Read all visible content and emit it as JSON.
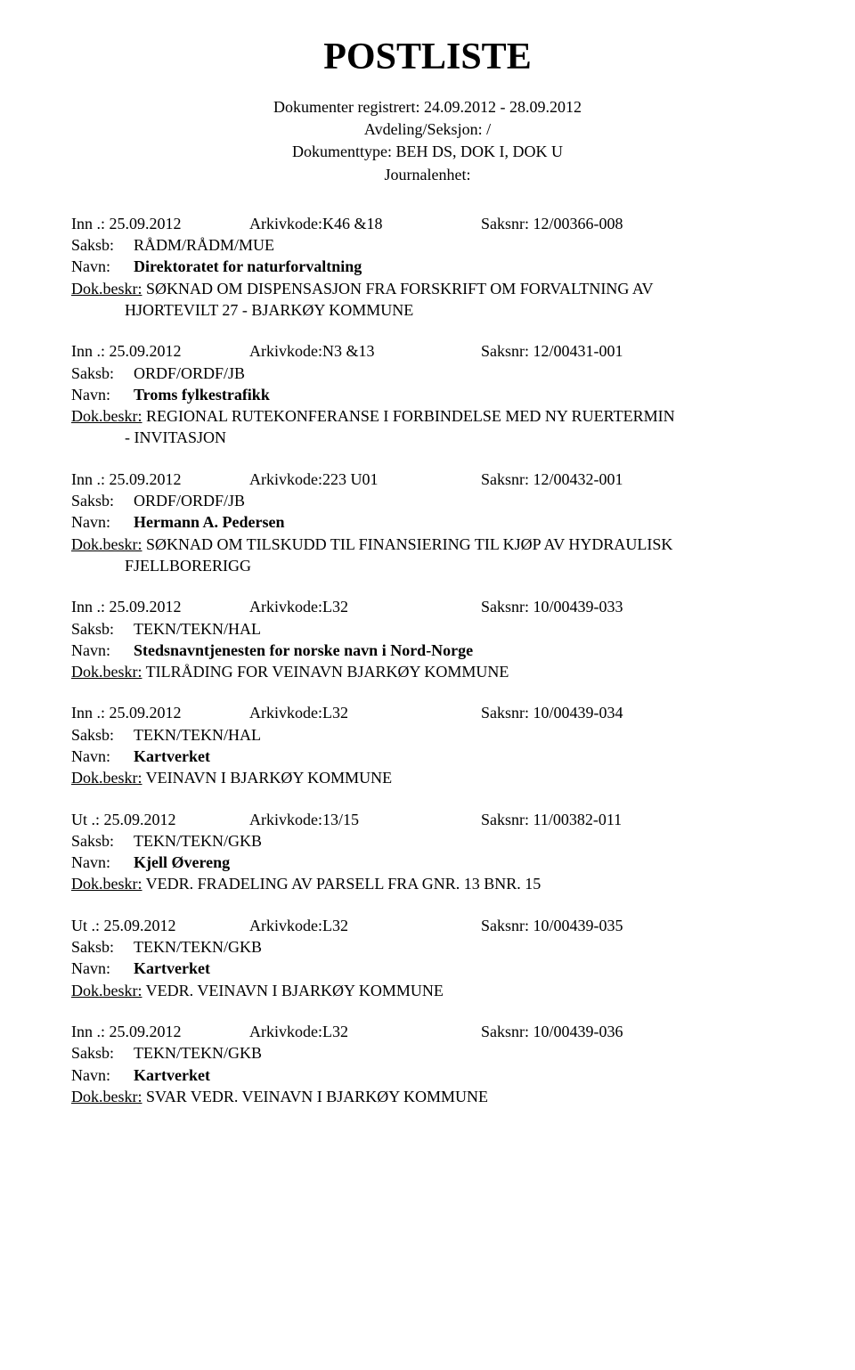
{
  "title": "POSTLISTE",
  "header": {
    "line1": "Dokumenter registrert: 24.09.2012 - 28.09.2012",
    "line2": "Avdeling/Seksjon: /",
    "line3": "Dokumenttype: BEH DS, DOK I, DOK U",
    "line4": "Journalenhet:"
  },
  "labels": {
    "saksb": "Saksb:",
    "navn": "Navn:",
    "dokbeskr": "Dok.beskr:"
  },
  "entries": [
    {
      "prefix": "Inn .: 25.09.2012",
      "arkivkode": "Arkivkode:K46 &18",
      "saksnr": "Saksnr: 12/00366-008",
      "saksb": "RÅDM/RÅDM/MUE",
      "navn": "Direktoratet for naturforvaltning",
      "dokbeskr1": " SØKNAD OM DISPENSASJON FRA FORSKRIFT OM FORVALTNING AV",
      "dokbeskr2": "HJORTEVILT 27 - BJARKØY KOMMUNE"
    },
    {
      "prefix": "Inn .: 25.09.2012",
      "arkivkode": "Arkivkode:N3 &13",
      "saksnr": "Saksnr: 12/00431-001",
      "saksb": "ORDF/ORDF/JB",
      "navn": "Troms fylkestrafikk",
      "dokbeskr1": " REGIONAL RUTEKONFERANSE I FORBINDELSE MED NY RUERTERMIN",
      "dokbeskr2": "- INVITASJON"
    },
    {
      "prefix": "Inn .: 25.09.2012",
      "arkivkode": "Arkivkode:223 U01",
      "saksnr": "Saksnr: 12/00432-001",
      "saksb": "ORDF/ORDF/JB",
      "navn": "Hermann A. Pedersen",
      "dokbeskr1": " SØKNAD OM TILSKUDD TIL FINANSIERING TIL KJØP AV HYDRAULISK",
      "dokbeskr2": "FJELLBORERIGG"
    },
    {
      "prefix": "Inn .: 25.09.2012",
      "arkivkode": "Arkivkode:L32",
      "saksnr": "Saksnr: 10/00439-033",
      "saksb": "TEKN/TEKN/HAL",
      "navn": "Stedsnavntjenesten for norske navn i Nord-Norge",
      "dokbeskr1": " TILRÅDING FOR VEINAVN BJARKØY KOMMUNE",
      "dokbeskr2": ""
    },
    {
      "prefix": "Inn .: 25.09.2012",
      "arkivkode": "Arkivkode:L32",
      "saksnr": "Saksnr: 10/00439-034",
      "saksb": "TEKN/TEKN/HAL",
      "navn": "Kartverket",
      "dokbeskr1": " VEINAVN I BJARKØY KOMMUNE",
      "dokbeskr2": ""
    },
    {
      "prefix": "Ut .: 25.09.2012",
      "arkivkode": "Arkivkode:13/15",
      "saksnr": "Saksnr: 11/00382-011",
      "saksb": "TEKN/TEKN/GKB",
      "navn": "Kjell Øvereng",
      "dokbeskr1": " VEDR. FRADELING AV PARSELL FRA GNR. 13 BNR. 15",
      "dokbeskr2": ""
    },
    {
      "prefix": "Ut .: 25.09.2012",
      "arkivkode": "Arkivkode:L32",
      "saksnr": "Saksnr: 10/00439-035",
      "saksb": "TEKN/TEKN/GKB",
      "navn": "Kartverket",
      "dokbeskr1": " VEDR. VEINAVN I BJARKØY KOMMUNE",
      "dokbeskr2": ""
    },
    {
      "prefix": "Inn .: 25.09.2012",
      "arkivkode": "Arkivkode:L32",
      "saksnr": "Saksnr: 10/00439-036",
      "saksb": "TEKN/TEKN/GKB",
      "navn": "Kartverket",
      "dokbeskr1": " SVAR VEDR. VEINAVN I BJARKØY KOMMUNE",
      "dokbeskr2": ""
    }
  ]
}
